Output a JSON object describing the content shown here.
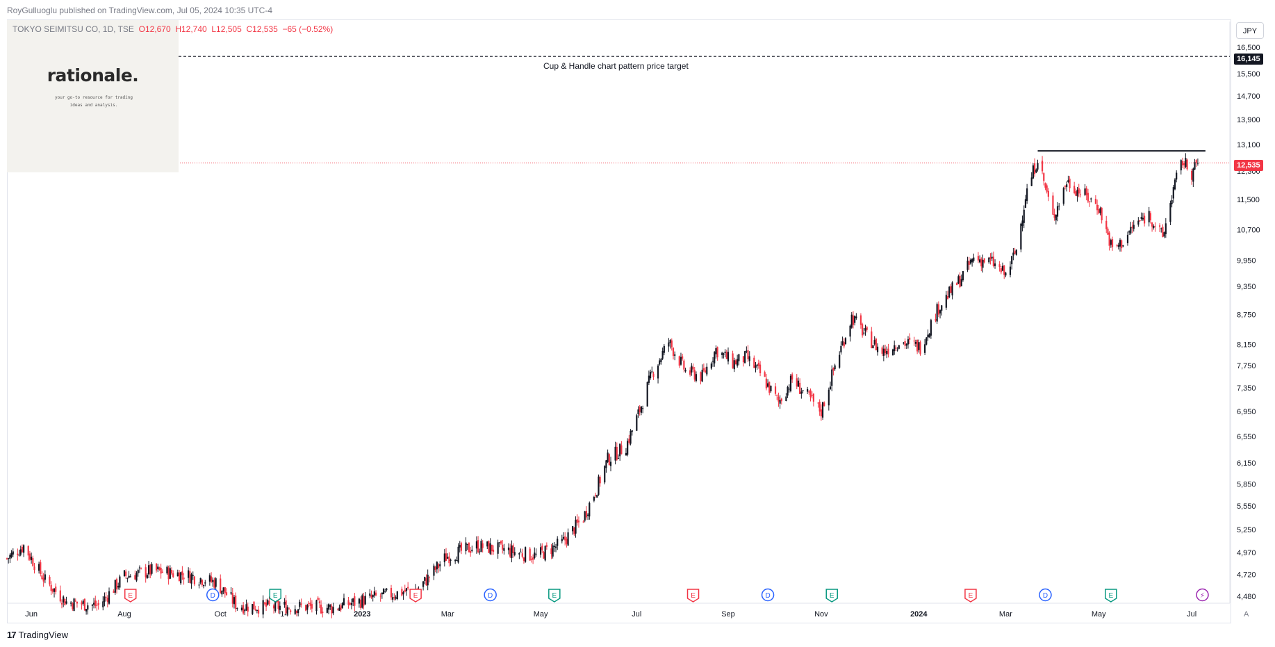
{
  "publisher": {
    "text": "RoyGulluoglu published on TradingView.com, Jul 05, 2024 10:35 UTC-4"
  },
  "legend": {
    "symbol": "TOKYO SEIMITSU CO, 1D, TSE",
    "open": "O12,670",
    "high": "H12,740",
    "low": "L12,505",
    "close": "C12,535",
    "change": "−65 (−0.52%)"
  },
  "logo": {
    "word": "rationale.",
    "tagline_1": "your go-to resource for trading",
    "tagline_2": "ideas and analysis."
  },
  "currency_label": "JPY",
  "price_labels": {
    "target": "16,145",
    "last": "12,535"
  },
  "annotation": "Cup & Handle chart pattern price target",
  "footer": {
    "brand": "TradingView",
    "auto": "A"
  },
  "colors": {
    "up": "#131722",
    "down": "#f23645",
    "event_earnings_red": "#f23645",
    "event_earnings_green": "#089981",
    "event_dividend": "#2962ff",
    "event_split": "#9c27b0",
    "target_line": "#131722",
    "last_price_line": "#f23645"
  },
  "chart_data": {
    "type": "candlestick",
    "title": "TOKYO SEIMITSU CO, 1D, TSE",
    "currency": "JPY",
    "scale": "log",
    "y_axis_labels": [
      "16,500",
      "15,500",
      "14,700",
      "13,900",
      "13,100",
      "12,300",
      "11,500",
      "10,700",
      "9,950",
      "9,350",
      "8,750",
      "8,150",
      "7,750",
      "7,350",
      "6,950",
      "6,550",
      "6,150",
      "5,850",
      "5,550",
      "5,250",
      "4,970",
      "4,720",
      "4,480"
    ],
    "y_axis_values": [
      16500,
      15500,
      14700,
      13900,
      13100,
      12300,
      11500,
      10700,
      9950,
      9350,
      8750,
      8150,
      7750,
      7350,
      6950,
      6550,
      6150,
      5850,
      5550,
      5250,
      4970,
      4720,
      4480
    ],
    "ylim": [
      4480,
      16500
    ],
    "x_axis_labels": [
      {
        "label": "Jun",
        "date": "2022-06-01",
        "bold": false
      },
      {
        "label": "Aug",
        "date": "2022-08-01",
        "bold": false
      },
      {
        "label": "Oct",
        "date": "2022-10-03",
        "bold": false
      },
      {
        "label": "14",
        "date": "2022-11-14",
        "bold": false
      },
      {
        "label": "2023",
        "date": "2023-01-04",
        "bold": true
      },
      {
        "label": "Mar",
        "date": "2023-03-01",
        "bold": false
      },
      {
        "label": "May",
        "date": "2023-05-01",
        "bold": false
      },
      {
        "label": "Jul",
        "date": "2023-07-03",
        "bold": false
      },
      {
        "label": "Sep",
        "date": "2023-09-01",
        "bold": false
      },
      {
        "label": "Nov",
        "date": "2023-11-01",
        "bold": false
      },
      {
        "label": "2024",
        "date": "2024-01-04",
        "bold": true
      },
      {
        "label": "Mar",
        "date": "2024-03-01",
        "bold": false
      },
      {
        "label": "May",
        "date": "2024-05-01",
        "bold": false
      },
      {
        "label": "Jul",
        "date": "2024-07-01",
        "bold": false
      }
    ],
    "close_path": [
      [
        "2022-05-16",
        4900
      ],
      [
        "2022-05-27",
        5050
      ],
      [
        "2022-06-10",
        4650
      ],
      [
        "2022-06-24",
        4420
      ],
      [
        "2022-07-15",
        4380
      ],
      [
        "2022-08-01",
        4700
      ],
      [
        "2022-08-19",
        4760
      ],
      [
        "2022-09-09",
        4720
      ],
      [
        "2022-09-30",
        4630
      ],
      [
        "2022-10-14",
        4380
      ],
      [
        "2022-11-01",
        4370
      ],
      [
        "2022-11-25",
        4370
      ],
      [
        "2022-12-16",
        4360
      ],
      [
        "2023-01-13",
        4470
      ],
      [
        "2023-02-10",
        4560
      ],
      [
        "2023-02-28",
        4920
      ],
      [
        "2023-03-20",
        5050
      ],
      [
        "2023-04-07",
        5000
      ],
      [
        "2023-04-28",
        4930
      ],
      [
        "2023-05-15",
        5080
      ],
      [
        "2023-05-29",
        5400
      ],
      [
        "2023-06-07",
        5800
      ],
      [
        "2023-06-14",
        6200
      ],
      [
        "2023-06-26",
        6400
      ],
      [
        "2023-07-04",
        6900
      ],
      [
        "2023-07-13",
        7600
      ],
      [
        "2023-07-24",
        8200
      ],
      [
        "2023-08-04",
        7650
      ],
      [
        "2023-08-15",
        7550
      ],
      [
        "2023-08-24",
        8050
      ],
      [
        "2023-09-04",
        7800
      ],
      [
        "2023-09-13",
        7900
      ],
      [
        "2023-09-22",
        7600
      ],
      [
        "2023-10-04",
        7100
      ],
      [
        "2023-10-13",
        7500
      ],
      [
        "2023-10-23",
        7200
      ],
      [
        "2023-11-01",
        6950
      ],
      [
        "2023-11-10",
        7750
      ],
      [
        "2023-11-21",
        8700
      ],
      [
        "2023-12-01",
        8300
      ],
      [
        "2023-12-11",
        8000
      ],
      [
        "2023-12-22",
        8200
      ],
      [
        "2024-01-05",
        8100
      ],
      [
        "2024-01-17",
        8900
      ],
      [
        "2024-01-31",
        9500
      ],
      [
        "2024-02-09",
        10000
      ],
      [
        "2024-02-21",
        9900
      ],
      [
        "2024-03-01",
        9600
      ],
      [
        "2024-03-08",
        10200
      ],
      [
        "2024-03-14",
        11600
      ],
      [
        "2024-03-22",
        12700
      ],
      [
        "2024-04-01",
        11000
      ],
      [
        "2024-04-10",
        12000
      ],
      [
        "2024-04-22",
        11600
      ],
      [
        "2024-05-01",
        11300
      ],
      [
        "2024-05-10",
        10200
      ],
      [
        "2024-05-17",
        10400
      ],
      [
        "2024-05-24",
        10800
      ],
      [
        "2024-06-03",
        11100
      ],
      [
        "2024-06-12",
        10500
      ],
      [
        "2024-06-19",
        11800
      ],
      [
        "2024-06-25",
        12600
      ],
      [
        "2024-07-01",
        12250
      ],
      [
        "2024-07-05",
        12535
      ]
    ],
    "last_price": 12535,
    "lines": [
      {
        "name": "Cup & Handle chart pattern price target",
        "value": 16145,
        "style": "dashed"
      },
      {
        "name": "resistance",
        "value": 12900,
        "from": "2024-03-22",
        "to": "2024-07-10",
        "style": "solid"
      },
      {
        "name": "last price",
        "value": 12535,
        "style": "dotted"
      }
    ],
    "events": [
      {
        "kind": "E",
        "date": "2022-08-05",
        "color": "red"
      },
      {
        "kind": "D",
        "date": "2022-09-28",
        "color": "blue"
      },
      {
        "kind": "E",
        "date": "2022-11-08",
        "color": "green"
      },
      {
        "kind": "E",
        "date": "2023-02-08",
        "color": "red"
      },
      {
        "kind": "D",
        "date": "2023-03-29",
        "color": "blue"
      },
      {
        "kind": "E",
        "date": "2023-05-10",
        "color": "green"
      },
      {
        "kind": "E",
        "date": "2023-08-09",
        "color": "red"
      },
      {
        "kind": "D",
        "date": "2023-09-27",
        "color": "blue"
      },
      {
        "kind": "E",
        "date": "2023-11-08",
        "color": "green"
      },
      {
        "kind": "E",
        "date": "2024-02-07",
        "color": "red"
      },
      {
        "kind": "D",
        "date": "2024-03-27",
        "color": "blue"
      },
      {
        "kind": "E",
        "date": "2024-05-09",
        "color": "green"
      },
      {
        "kind": "S",
        "date": "2024-07-08",
        "color": "purple"
      }
    ]
  }
}
